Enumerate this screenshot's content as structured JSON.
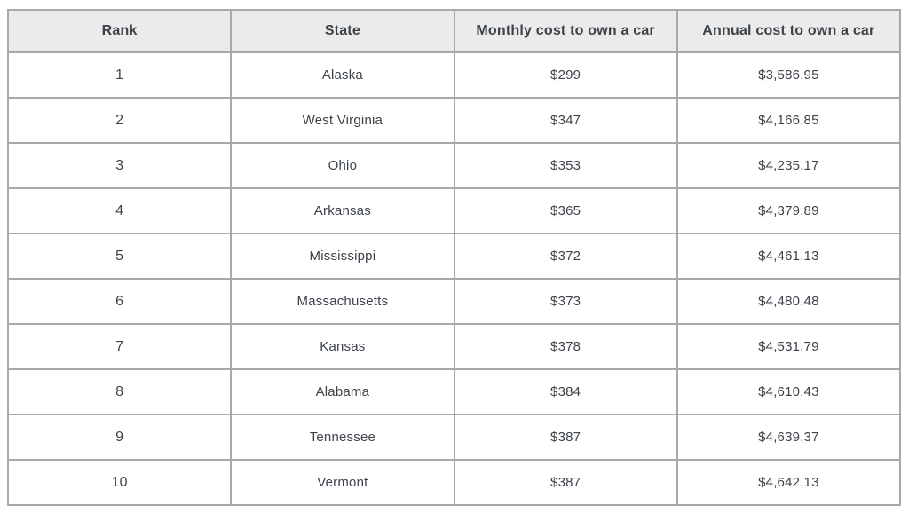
{
  "chart_data": {
    "type": "table",
    "columns": [
      "Rank",
      "State",
      "Monthly cost to own a car",
      "Annual cost to own a car"
    ],
    "rows": [
      [
        "1",
        "Alaska",
        "$299",
        "$3,586.95"
      ],
      [
        "2",
        "West Virginia",
        "$347",
        "$4,166.85"
      ],
      [
        "3",
        "Ohio",
        "$353",
        "$4,235.17"
      ],
      [
        "4",
        "Arkansas",
        "$365",
        "$4,379.89"
      ],
      [
        "5",
        "Mississippi",
        "$372",
        "$4,461.13"
      ],
      [
        "6",
        "Massachusetts",
        "$373",
        "$4,480.48"
      ],
      [
        "7",
        "Kansas",
        "$378",
        "$4,531.79"
      ],
      [
        "8",
        "Alabama",
        "$384",
        "$4,610.43"
      ],
      [
        "9",
        "Tennessee",
        "$387",
        "$4,639.37"
      ],
      [
        "10",
        "Vermont",
        "$387",
        "$4,642.13"
      ]
    ]
  },
  "colors": {
    "header_bg": "#ebebeb",
    "border": "#a8a8a8",
    "text": "#3d434b"
  }
}
